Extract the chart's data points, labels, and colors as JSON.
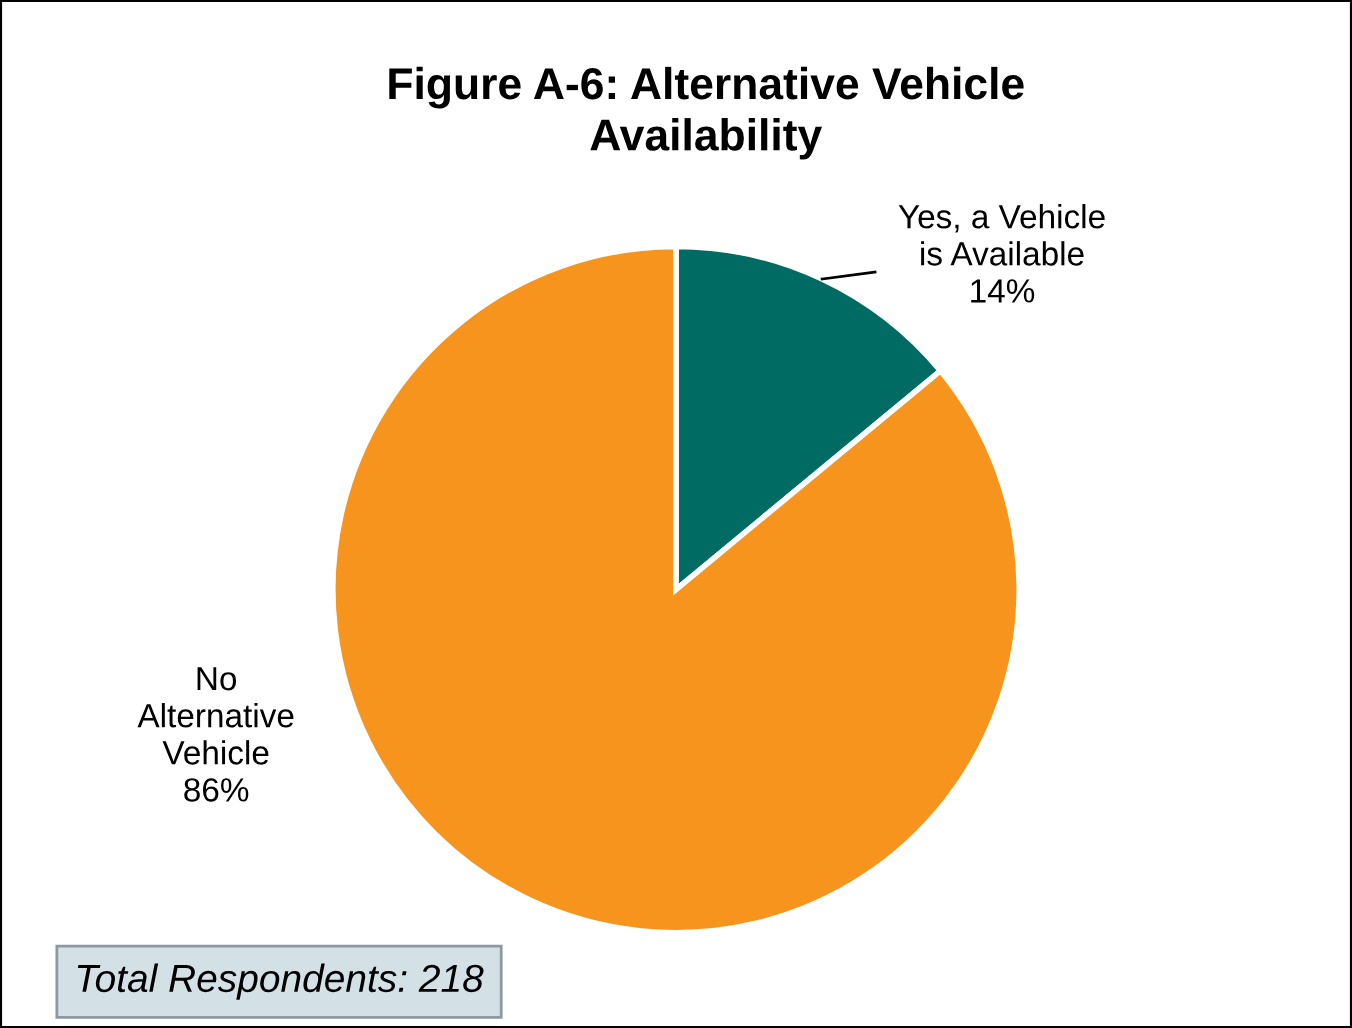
{
  "chart_data": {
    "type": "pie",
    "title": "Figure A-6: Alternative Vehicle\nAvailability",
    "categories": [
      "Yes, a Vehicle\nis Available",
      "No\nAlternative\nVehicle"
    ],
    "values": [
      14,
      86
    ],
    "colors": [
      "#006b63",
      "#f7941d"
    ],
    "value_labels": [
      "14%",
      "86%"
    ],
    "annotations": [
      "Total Respondents: 218"
    ]
  }
}
